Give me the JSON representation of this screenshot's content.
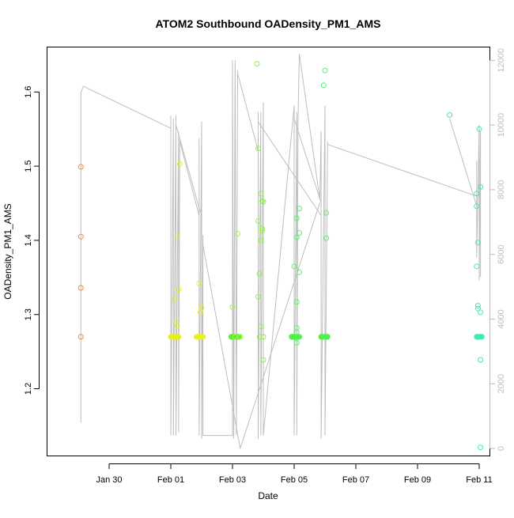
{
  "chart_data": {
    "type": "scatter",
    "title": "ATOM2 Southbound OADensity_PM1_AMS",
    "xlabel": "Date",
    "ylabel": "OADensity_PM1_AMS",
    "xlim": [
      "2017-01-28",
      "2017-02-11T08:00"
    ],
    "ylim": [
      1.11,
      1.66
    ],
    "y_right_lim": [
      -220,
      12400
    ],
    "x_ticks": [
      {
        "date": "2017-01-30",
        "label": "Jan 30"
      },
      {
        "date": "2017-02-01",
        "label": "Feb 01"
      },
      {
        "date": "2017-02-03",
        "label": "Feb 03"
      },
      {
        "date": "2017-02-05",
        "label": "Feb 05"
      },
      {
        "date": "2017-02-07",
        "label": "Feb 07"
      },
      {
        "date": "2017-02-09",
        "label": "Feb 09"
      },
      {
        "date": "2017-02-11",
        "label": "Feb 11"
      }
    ],
    "y_ticks": [
      "1.2",
      "1.3",
      "1.4",
      "1.5",
      "1.6"
    ],
    "y_right_ticks": [
      "0",
      "2000",
      "4000",
      "6000",
      "8000",
      "10000",
      "12000"
    ],
    "grid": false,
    "legend": "none",
    "series": [
      {
        "kind": "points",
        "y_axis": "left",
        "color_scale": [
          "#ff7f3f",
          "#ffe100",
          "#7fff3f",
          "#3fffae"
        ],
        "points": [
          {
            "x": "2017-01-29T02:00",
            "y": 1.499,
            "color": "#f28a47"
          },
          {
            "x": "2017-01-29T02:00",
            "y": 1.405,
            "color": "#f28a47"
          },
          {
            "x": "2017-01-29T02:00",
            "y": 1.336,
            "color": "#f28a47"
          },
          {
            "x": "2017-01-29T02:00",
            "y": 1.27,
            "color": "#f28a47"
          },
          {
            "x": "2017-02-01T02:00",
            "y": 1.27,
            "color": "#e6ee1f"
          },
          {
            "x": "2017-02-01T03:00",
            "y": 1.32,
            "color": "#e6ee1f"
          },
          {
            "x": "2017-02-01T04:00",
            "y": 1.29,
            "color": "#e6ee1f"
          },
          {
            "x": "2017-02-01T05:00",
            "y": 1.285,
            "color": "#e6ee1f"
          },
          {
            "x": "2017-02-01T05:00",
            "y": 1.406,
            "color": "#e6ee1f"
          },
          {
            "x": "2017-02-01T06:00",
            "y": 1.334,
            "color": "#e6ee1f"
          },
          {
            "x": "2017-02-01T07:00",
            "y": 1.503,
            "color": "#e6ee1f"
          },
          {
            "x": "2017-02-01T22:00",
            "y": 1.27,
            "color": "#e8f21f"
          },
          {
            "x": "2017-02-01T22:00",
            "y": 1.342,
            "color": "#e8f21f"
          },
          {
            "x": "2017-02-01T23:00",
            "y": 1.303,
            "color": "#e8f21f"
          },
          {
            "x": "2017-02-02T00:00",
            "y": 1.309,
            "color": "#e8f21f"
          },
          {
            "x": "2017-02-02T01:00",
            "y": 1.27,
            "color": "#e8f21f"
          },
          {
            "x": "2017-02-03T00:00",
            "y": 1.31,
            "color": "#a4f53c"
          },
          {
            "x": "2017-02-03T02:00",
            "y": 1.27,
            "color": "#a4f53c"
          },
          {
            "x": "2017-02-03T04:00",
            "y": 1.409,
            "color": "#a4f53c"
          },
          {
            "x": "2017-02-03T06:00",
            "y": 1.27,
            "color": "#a4f53c"
          },
          {
            "x": "2017-02-03T19:00",
            "y": 1.638,
            "color": "#8cf542"
          },
          {
            "x": "2017-02-03T20:00",
            "y": 1.524,
            "color": "#8cf542"
          },
          {
            "x": "2017-02-03T20:00",
            "y": 1.426,
            "color": "#8cf542"
          },
          {
            "x": "2017-02-03T20:00",
            "y": 1.324,
            "color": "#8cf542"
          },
          {
            "x": "2017-02-03T21:00",
            "y": 1.355,
            "color": "#8cf542"
          },
          {
            "x": "2017-02-03T21:00",
            "y": 1.27,
            "color": "#8cf542"
          },
          {
            "x": "2017-02-03T22:00",
            "y": 1.463,
            "color": "#8cf542"
          },
          {
            "x": "2017-02-03T22:00",
            "y": 1.4,
            "color": "#8cf542"
          },
          {
            "x": "2017-02-03T22:00",
            "y": 1.284,
            "color": "#8cf542"
          },
          {
            "x": "2017-02-03T23:00",
            "y": 1.453,
            "color": "#8cf542"
          },
          {
            "x": "2017-02-03T23:00",
            "y": 1.416,
            "color": "#8cf542"
          },
          {
            "x": "2017-02-03T23:00",
            "y": 1.413,
            "color": "#8cf542"
          },
          {
            "x": "2017-02-04T00:00",
            "y": 1.452,
            "color": "#8cf542"
          },
          {
            "x": "2017-02-04T00:00",
            "y": 1.27,
            "color": "#8cf542"
          },
          {
            "x": "2017-02-04T00:00",
            "y": 1.239,
            "color": "#8cf542"
          },
          {
            "x": "2017-02-05T00:00",
            "y": 1.365,
            "color": "#5ff06a"
          },
          {
            "x": "2017-02-05T02:00",
            "y": 1.43,
            "color": "#5ff06a"
          },
          {
            "x": "2017-02-05T02:00",
            "y": 1.404,
            "color": "#5ff06a"
          },
          {
            "x": "2017-02-05T02:00",
            "y": 1.317,
            "color": "#5ff06a"
          },
          {
            "x": "2017-02-05T02:00",
            "y": 1.282,
            "color": "#5ff06a"
          },
          {
            "x": "2017-02-05T02:00",
            "y": 1.276,
            "color": "#5ff06a"
          },
          {
            "x": "2017-02-05T02:00",
            "y": 1.262,
            "color": "#5ff06a"
          },
          {
            "x": "2017-02-05T03:00",
            "y": 1.27,
            "color": "#5ff06a"
          },
          {
            "x": "2017-02-05T04:00",
            "y": 1.443,
            "color": "#5ff06a"
          },
          {
            "x": "2017-02-05T04:00",
            "y": 1.41,
            "color": "#5ff06a"
          },
          {
            "x": "2017-02-05T04:00",
            "y": 1.357,
            "color": "#5ff06a"
          },
          {
            "x": "2017-02-05T23:00",
            "y": 1.609,
            "color": "#55f07a"
          },
          {
            "x": "2017-02-06T00:00",
            "y": 1.629,
            "color": "#55f07a"
          },
          {
            "x": "2017-02-06T01:00",
            "y": 1.437,
            "color": "#55f07a"
          },
          {
            "x": "2017-02-06T01:00",
            "y": 1.403,
            "color": "#55f07a"
          },
          {
            "x": "2017-02-06T00:00",
            "y": 1.27,
            "color": "#55f07a"
          },
          {
            "x": "2017-02-10T01:00",
            "y": 1.569,
            "color": "#3febb0"
          },
          {
            "x": "2017-02-10T22:00",
            "y": 1.463,
            "color": "#3febb0"
          },
          {
            "x": "2017-02-10T22:00",
            "y": 1.446,
            "color": "#3febb0"
          },
          {
            "x": "2017-02-10T23:00",
            "y": 1.397,
            "color": "#3febb0"
          },
          {
            "x": "2017-02-10T22:00",
            "y": 1.365,
            "color": "#3febb0"
          },
          {
            "x": "2017-02-10T23:00",
            "y": 1.312,
            "color": "#3febb0"
          },
          {
            "x": "2017-02-10T23:00",
            "y": 1.308,
            "color": "#3febb0"
          },
          {
            "x": "2017-02-11T00:00",
            "y": 1.55,
            "color": "#3febb0"
          },
          {
            "x": "2017-02-11T01:00",
            "y": 1.472,
            "color": "#3febb0"
          },
          {
            "x": "2017-02-11T01:00",
            "y": 1.303,
            "color": "#3febb0"
          },
          {
            "x": "2017-02-11T01:00",
            "y": 1.27,
            "color": "#3febb0"
          },
          {
            "x": "2017-02-11T01:00",
            "y": 1.239,
            "color": "#3febb0"
          },
          {
            "x": "2017-02-11T01:00",
            "y": 1.121,
            "color": "#3febb0"
          }
        ],
        "dense_clusters": [
          {
            "from": "2017-02-01T00:00",
            "to": "2017-02-01T06:00",
            "y": 1.27,
            "color": "#e6ee1f"
          },
          {
            "from": "2017-02-01T20:00",
            "to": "2017-02-02T01:00",
            "y": 1.27,
            "color": "#e8f21f"
          },
          {
            "from": "2017-02-02T23:00",
            "to": "2017-02-03T05:00",
            "y": 1.27,
            "color": "#55f03a"
          },
          {
            "from": "2017-02-04T22:00",
            "to": "2017-02-05T04:00",
            "y": 1.27,
            "color": "#4ff040"
          },
          {
            "from": "2017-02-05T21:00",
            "to": "2017-02-06T02:00",
            "y": 1.27,
            "color": "#4ff040"
          },
          {
            "from": "2017-02-10T22:00",
            "to": "2017-02-11T02:00",
            "y": 1.27,
            "color": "#3febb0"
          }
        ]
      },
      {
        "kind": "line",
        "y_axis": "right",
        "color": "#bebebe",
        "points": [
          [
            "2017-01-29T02:00",
            800
          ],
          [
            "2017-01-29T02:00",
            11000
          ],
          [
            "2017-01-29T04:00",
            11200
          ],
          [
            "2017-02-01T00:00",
            9900
          ],
          [
            "2017-02-01T00:00",
            10300
          ],
          [
            "2017-02-01T00:00",
            400
          ],
          [
            "2017-02-01T02:00",
            10200
          ],
          [
            "2017-02-01T02:00",
            400
          ],
          [
            "2017-02-01T04:00",
            10300
          ],
          [
            "2017-02-01T04:00",
            400
          ],
          [
            "2017-02-01T06:00",
            9800
          ],
          [
            "2017-02-01T06:00",
            500
          ],
          [
            "2017-02-01T07:00",
            9600
          ],
          [
            "2017-02-01T07:00",
            9500
          ],
          [
            "2017-02-01T22:00",
            7200
          ],
          [
            "2017-02-01T22:00",
            9600
          ],
          [
            "2017-02-01T22:00",
            400
          ],
          [
            "2017-02-02T00:00",
            10100
          ],
          [
            "2017-02-02T00:00",
            300
          ],
          [
            "2017-02-02T01:00",
            6600
          ],
          [
            "2017-02-02T01:00",
            400
          ],
          [
            "2017-02-03T00:00",
            400
          ],
          [
            "2017-02-03T00:00",
            12000
          ],
          [
            "2017-02-03T01:00",
            300
          ],
          [
            "2017-02-03T02:00",
            12000
          ],
          [
            "2017-02-03T03:00",
            400
          ],
          [
            "2017-02-03T04:00",
            11700
          ],
          [
            "2017-02-03T04:00",
            11600
          ],
          [
            "2017-02-03T20:00",
            9200
          ],
          [
            "2017-02-03T20:00",
            10400
          ],
          [
            "2017-02-03T20:00",
            300
          ],
          [
            "2017-02-03T22:00",
            10400
          ],
          [
            "2017-02-03T22:00",
            400
          ],
          [
            "2017-02-04T00:00",
            10700
          ],
          [
            "2017-02-04T00:00",
            400
          ],
          [
            "2017-02-05T00:00",
            10600
          ],
          [
            "2017-02-05T00:00",
            400
          ],
          [
            "2017-02-05T02:00",
            10400
          ],
          [
            "2017-02-05T02:00",
            400
          ],
          [
            "2017-02-05T03:00",
            10200
          ],
          [
            "2017-02-05T04:00",
            12200
          ],
          [
            "2017-02-05T20:00",
            7700
          ],
          [
            "2017-02-05T21:00",
            9800
          ],
          [
            "2017-02-05T21:00",
            300
          ],
          [
            "2017-02-06T00:00",
            10600
          ],
          [
            "2017-02-06T00:00",
            400
          ],
          [
            "2017-02-06T02:00",
            9500
          ],
          [
            "2017-02-06T02:00",
            9400
          ],
          [
            "2017-02-10T22:00",
            7800
          ],
          [
            "2017-02-10T22:00",
            8900
          ],
          [
            "2017-02-10T22:00",
            5900
          ],
          [
            "2017-02-11T00:00",
            10000
          ],
          [
            "2017-02-11T00:00",
            5200
          ],
          [
            "2017-02-11T01:00",
            9800
          ],
          [
            "2017-02-11T01:00",
            5300
          ]
        ],
        "extra_segments": [
          [
            [
              "2017-02-01T04:00",
              10000
            ],
            [
              "2017-02-01T23:00",
              7300
            ]
          ],
          [
            [
              "2017-02-02T01:00",
              6300
            ],
            [
              "2017-02-03T06:00",
              0
            ],
            [
              "2017-02-05T20:00",
              7600
            ]
          ],
          [
            [
              "2017-02-03T20:00",
              10100
            ],
            [
              "2017-02-05T21:00",
              7200
            ]
          ],
          [
            [
              "2017-02-05T00:00",
              10200
            ],
            [
              "2017-02-05T21:00",
              7600
            ]
          ],
          [
            [
              "2017-02-10T01:00",
              10200
            ],
            [
              "2017-02-10T22:00",
              7500
            ]
          ]
        ]
      }
    ]
  }
}
